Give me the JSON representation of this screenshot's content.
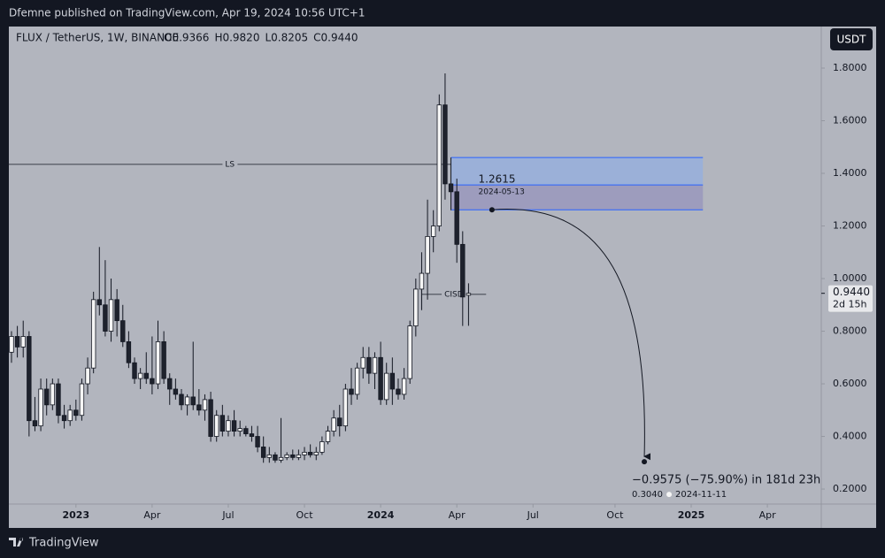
{
  "chart_data": {
    "type": "candlestick",
    "header": "Dfemne published on TradingView.com, Apr 19, 2024 10:56 UTC+1",
    "title": "FLUX / TetherUS, 1W, BINANCE",
    "ohlc_labels": [
      "O0.9366",
      "H0.9820",
      "L0.8205",
      "C0.9440"
    ],
    "currency": "USDT",
    "brand": "TradingView",
    "xlim": [
      -0.45,
      138.2
    ],
    "ylim": [
      0.143,
      1.958
    ],
    "yticks": [
      {
        "value": 0.2,
        "label": "0.2000"
      },
      {
        "value": 0.4,
        "label": "0.4000"
      },
      {
        "value": 0.6,
        "label": "0.6000"
      },
      {
        "value": 0.8,
        "label": "0.8000"
      },
      {
        "value": 1.0,
        "label": "1.0000"
      },
      {
        "value": 1.2,
        "label": "1.2000"
      },
      {
        "value": 1.4,
        "label": "1.4000"
      },
      {
        "value": 1.6,
        "label": "1.6000"
      },
      {
        "value": 1.8,
        "label": "1.8000"
      }
    ],
    "xticks": [
      {
        "value": 11,
        "label": "2023"
      },
      {
        "value": 24,
        "label": "Apr"
      },
      {
        "value": 37,
        "label": "Jul"
      },
      {
        "value": 50,
        "label": "Oct"
      },
      {
        "value": 63,
        "label": "2024"
      },
      {
        "value": 76,
        "label": "Apr"
      },
      {
        "value": 89,
        "label": "Jul"
      },
      {
        "value": 103,
        "label": "Oct"
      },
      {
        "value": 116,
        "label": "2025"
      },
      {
        "value": 129,
        "label": "Apr"
      }
    ],
    "x": [
      0,
      1,
      2,
      3,
      4,
      5,
      6,
      7,
      8,
      9,
      10,
      11,
      12,
      13,
      14,
      15,
      16,
      17,
      18,
      19,
      20,
      21,
      22,
      23,
      24,
      25,
      26,
      27,
      28,
      29,
      30,
      31,
      32,
      33,
      34,
      35,
      36,
      37,
      38,
      39,
      40,
      41,
      42,
      43,
      44,
      45,
      46,
      47,
      48,
      49,
      50,
      51,
      52,
      53,
      54,
      55,
      56,
      57,
      58,
      59,
      60,
      61,
      62,
      63,
      64,
      65,
      66,
      67,
      68,
      69,
      70,
      71,
      72,
      73,
      74,
      75,
      76,
      77,
      78
    ],
    "open": [
      0.72,
      0.78,
      0.74,
      0.78,
      0.46,
      0.44,
      0.58,
      0.52,
      0.6,
      0.48,
      0.46,
      0.5,
      0.48,
      0.6,
      0.66,
      0.92,
      0.9,
      0.8,
      0.92,
      0.84,
      0.76,
      0.68,
      0.62,
      0.64,
      0.62,
      0.6,
      0.76,
      0.62,
      0.58,
      0.56,
      0.52,
      0.55,
      0.52,
      0.5,
      0.54,
      0.4,
      0.48,
      0.42,
      0.46,
      0.42,
      0.43,
      0.41,
      0.4,
      0.36,
      0.32,
      0.33,
      0.31,
      0.32,
      0.33,
      0.32,
      0.33,
      0.34,
      0.33,
      0.34,
      0.38,
      0.42,
      0.47,
      0.44,
      0.58,
      0.56,
      0.66,
      0.7,
      0.64,
      0.7,
      0.54,
      0.64,
      0.58,
      0.56,
      0.62,
      0.82,
      0.96,
      1.02,
      1.16,
      1.2,
      1.66,
      1.36,
      1.33,
      1.13,
      0.9366
    ],
    "high": [
      0.8,
      0.82,
      0.84,
      0.8,
      0.55,
      0.62,
      0.62,
      0.62,
      0.62,
      0.52,
      0.52,
      0.54,
      0.62,
      0.7,
      0.95,
      1.12,
      1.07,
      1.0,
      0.96,
      0.9,
      0.8,
      0.7,
      0.66,
      0.72,
      0.78,
      0.84,
      0.8,
      0.64,
      0.62,
      0.58,
      0.56,
      0.76,
      0.58,
      0.56,
      0.57,
      0.5,
      0.52,
      0.48,
      0.5,
      0.46,
      0.44,
      0.44,
      0.44,
      0.4,
      0.36,
      0.34,
      0.47,
      0.34,
      0.35,
      0.35,
      0.36,
      0.37,
      0.36,
      0.4,
      0.44,
      0.5,
      0.52,
      0.6,
      0.66,
      0.68,
      0.74,
      0.74,
      0.72,
      0.76,
      0.68,
      0.7,
      0.62,
      0.66,
      0.84,
      1.0,
      1.1,
      1.3,
      1.26,
      1.7,
      1.78,
      1.46,
      1.38,
      1.18,
      0.982
    ],
    "low": [
      0.68,
      0.7,
      0.7,
      0.4,
      0.42,
      0.42,
      0.48,
      0.5,
      0.45,
      0.43,
      0.44,
      0.46,
      0.46,
      0.56,
      0.64,
      0.86,
      0.78,
      0.76,
      0.78,
      0.74,
      0.66,
      0.6,
      0.58,
      0.6,
      0.56,
      0.58,
      0.6,
      0.52,
      0.54,
      0.5,
      0.48,
      0.5,
      0.48,
      0.46,
      0.38,
      0.38,
      0.4,
      0.4,
      0.4,
      0.4,
      0.4,
      0.38,
      0.34,
      0.3,
      0.3,
      0.3,
      0.3,
      0.31,
      0.31,
      0.31,
      0.31,
      0.32,
      0.31,
      0.33,
      0.37,
      0.4,
      0.4,
      0.42,
      0.52,
      0.54,
      0.62,
      0.6,
      0.58,
      0.52,
      0.52,
      0.52,
      0.54,
      0.54,
      0.6,
      0.78,
      0.88,
      0.92,
      1.1,
      1.18,
      1.3,
      1.26,
      1.06,
      0.82,
      0.8205
    ],
    "close": [
      0.78,
      0.74,
      0.78,
      0.46,
      0.44,
      0.58,
      0.52,
      0.6,
      0.48,
      0.46,
      0.5,
      0.48,
      0.6,
      0.66,
      0.92,
      0.9,
      0.8,
      0.92,
      0.84,
      0.76,
      0.68,
      0.62,
      0.64,
      0.62,
      0.6,
      0.76,
      0.62,
      0.58,
      0.56,
      0.52,
      0.55,
      0.52,
      0.5,
      0.54,
      0.4,
      0.48,
      0.42,
      0.46,
      0.42,
      0.43,
      0.41,
      0.4,
      0.36,
      0.32,
      0.33,
      0.31,
      0.32,
      0.33,
      0.32,
      0.33,
      0.34,
      0.33,
      0.34,
      0.38,
      0.42,
      0.47,
      0.44,
      0.58,
      0.56,
      0.66,
      0.7,
      0.64,
      0.7,
      0.54,
      0.64,
      0.58,
      0.56,
      0.62,
      0.82,
      0.96,
      1.02,
      1.16,
      1.2,
      1.66,
      1.36,
      1.33,
      1.13,
      0.93,
      0.944
    ],
    "up_color": "#f5f5f5",
    "down_color": "#1e222d",
    "last_price": {
      "value": 0.944,
      "label": "0.9440"
    },
    "countdown": "2d 15h",
    "levels": [
      {
        "label": "LS",
        "value": 1.434,
        "x": [
          -0.45,
          75
        ]
      },
      {
        "label": "CISD",
        "value": 0.94,
        "x": [
          70,
          81
        ]
      }
    ],
    "zone": {
      "top": 1.46,
      "mid": 1.356,
      "bottom": 1.2615,
      "x": [
        75,
        118
      ]
    },
    "projection": {
      "start": {
        "value": 1.2615,
        "label": "1.2615"
      },
      "start_date": "2024-05-13",
      "start_x": 82,
      "end": {
        "value": 0.304,
        "label": "0.3040"
      },
      "end_date": "2024-11-11",
      "end_x": 108,
      "change": "−0.9575 (−75.90%) in 181d 23h"
    }
  }
}
